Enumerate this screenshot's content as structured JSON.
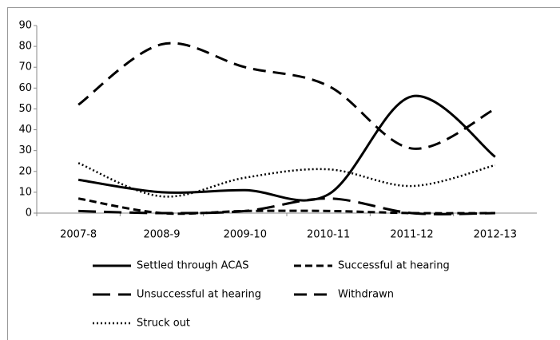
{
  "chart_data": {
    "type": "line",
    "categories": [
      "2007-8",
      "2008-9",
      "2009-10",
      "2010-11",
      "2011-12",
      "2012-13"
    ],
    "series": [
      {
        "name": "Settled through ACAS",
        "color": "#000000",
        "dash": "solid",
        "values": [
          16,
          10,
          11,
          9,
          56,
          27
        ]
      },
      {
        "name": "Successful at hearing",
        "color": "#000000",
        "dash": "short",
        "values": [
          7,
          0,
          1,
          1,
          0,
          0
        ]
      },
      {
        "name": "Unsuccessful at hearing",
        "color": "#000000",
        "dash": "long",
        "values": [
          1,
          0,
          1,
          7,
          0,
          0
        ]
      },
      {
        "name": "Withdrawn",
        "color": "#000000",
        "dash": "medium",
        "values": [
          52,
          81,
          70,
          61,
          31,
          50
        ]
      },
      {
        "name": "Struck out",
        "color": "#000000",
        "dash": "dotted",
        "values": [
          24,
          8,
          17,
          21,
          13,
          23
        ]
      }
    ],
    "ylim": [
      0,
      90
    ],
    "yticks": [
      0,
      10,
      20,
      30,
      40,
      50,
      60,
      70,
      80,
      90
    ],
    "grid": false,
    "smooth": true,
    "legend": "bottom"
  }
}
